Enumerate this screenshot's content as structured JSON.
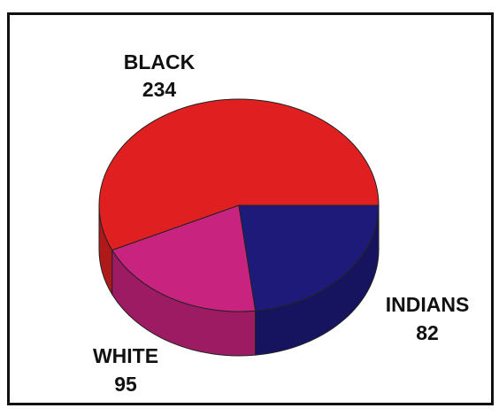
{
  "chart_data": {
    "type": "pie",
    "style": "3d",
    "labels": [
      "BLACK",
      "INDIANS",
      "WHITE"
    ],
    "values": [
      234,
      82,
      95
    ],
    "colors": [
      "#e02020",
      "#c8237f",
      "#1e1a7a"
    ],
    "data_labels": [
      "234",
      "82",
      "95"
    ],
    "legend": "none",
    "title": ""
  }
}
